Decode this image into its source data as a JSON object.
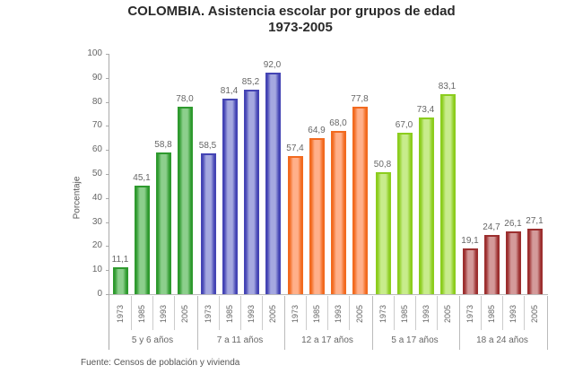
{
  "title_line1": "COLOMBIA. Asistencia escolar por grupos de edad",
  "title_line2": "1973-2005",
  "ylabel": "Porcentaje",
  "source": "Fuente: Censos de población y vivienda",
  "yticks": [
    "0",
    "10",
    "20",
    "30",
    "40",
    "50",
    "60",
    "70",
    "80",
    "90",
    "100"
  ],
  "colors": {
    "5 y 6 años": {
      "fill": "#8ccf8c",
      "border": "#2e9a2e"
    },
    "7 a 11 años": {
      "fill": "#a5a8e0",
      "border": "#4444b4"
    },
    "12 a 17 años": {
      "fill": "#ffb08a",
      "border": "#f26a1f"
    },
    "5 a 17 años": {
      "fill": "#c8ec8c",
      "border": "#8ccd1e"
    },
    "18 a 24 años": {
      "fill": "#d49a9a",
      "border": "#9c2f2f"
    }
  },
  "chart_data": {
    "type": "bar",
    "title": "COLOMBIA. Asistencia escolar por grupos de edad 1973-2005",
    "xlabel": "",
    "ylabel": "Porcentaje",
    "ylim": [
      0,
      100
    ],
    "grid": false,
    "legend": "none",
    "categories": [
      "1973",
      "1985",
      "1993",
      "2005"
    ],
    "groups": [
      {
        "name": "5 y 6 años",
        "values": [
          11.1,
          45.1,
          58.8,
          78.0
        ]
      },
      {
        "name": "7 a 11 años",
        "values": [
          58.5,
          81.4,
          85.2,
          92.0
        ]
      },
      {
        "name": "12 a 17 años",
        "values": [
          57.4,
          64.9,
          68.0,
          77.8
        ]
      },
      {
        "name": "5 a 17 años",
        "values": [
          50.8,
          67.0,
          73.4,
          83.1
        ]
      },
      {
        "name": "18 a 24 años",
        "values": [
          19.1,
          24.7,
          26.1,
          27.1
        ]
      }
    ],
    "value_labels": [
      [
        "11,1",
        "45,1",
        "58,8",
        "78,0"
      ],
      [
        "58,5",
        "81,4",
        "85,2",
        "92,0"
      ],
      [
        "57,4",
        "64,9",
        "68,0",
        "77,8"
      ],
      [
        "50,8",
        "67,0",
        "73,4",
        "83,1"
      ],
      [
        "19,1",
        "24,7",
        "26,1",
        "27,1"
      ]
    ],
    "group_labels": [
      "5 y 6 años",
      "7 a 11 años",
      "12 a 17 años",
      "5 a 17 años",
      "18 a 24 años"
    ],
    "source": "Fuente: Censos de población y vivienda"
  }
}
